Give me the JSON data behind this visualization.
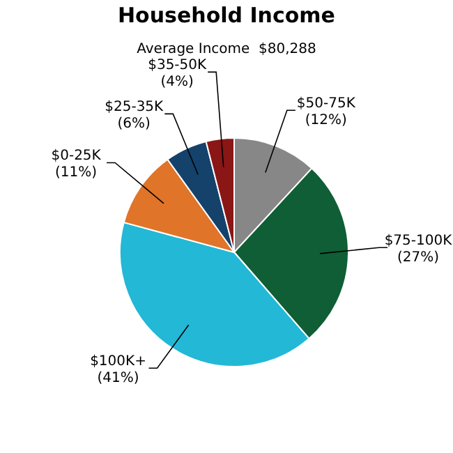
{
  "chart_data": {
    "type": "pie",
    "title": "Household Income",
    "subtitle": "Average Income  $80,288",
    "categories": [
      "$50-75K",
      "$75-100K",
      "$100K+",
      "$0-25K",
      "$25-35K",
      "$35-50K"
    ],
    "values": [
      12,
      27,
      41,
      11,
      6,
      4
    ],
    "value_labels": [
      "(12%)",
      "(27%)",
      "(41%)",
      "(11%)",
      "(6%)",
      "(4%)"
    ],
    "colors": [
      "#878787",
      "#0f5e35",
      "#22b8d6",
      "#e07428",
      "#14426b",
      "#8a1616"
    ]
  }
}
